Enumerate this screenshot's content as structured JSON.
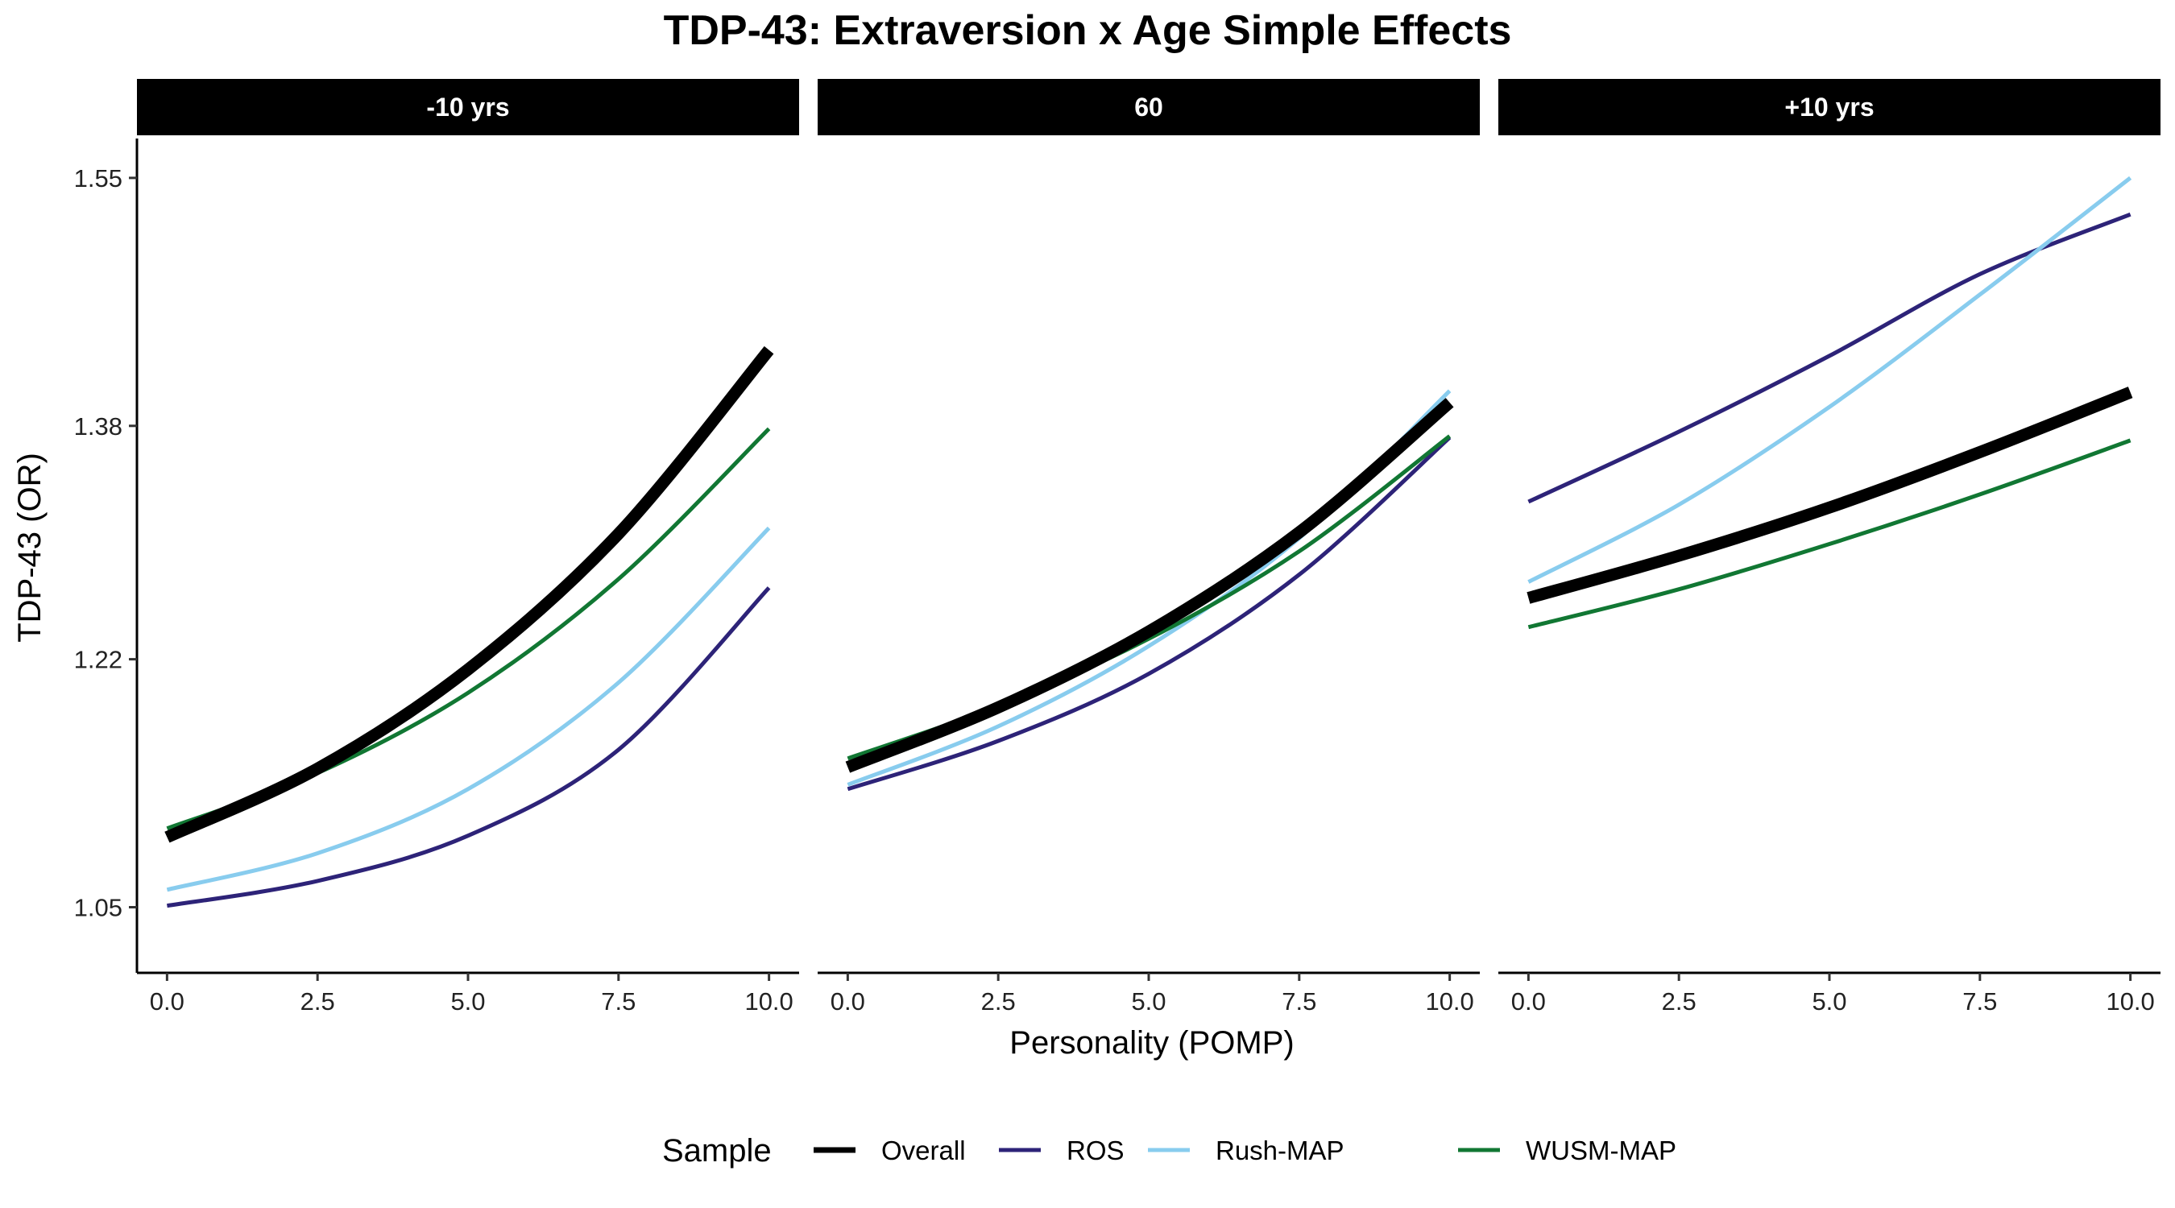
{
  "chart_data": {
    "type": "line",
    "title": "TDP-43: Extraversion x Age Simple Effects",
    "xlabel": "Personality (POMP)",
    "ylabel": "TDP-43 (OR)",
    "xlim": [
      -0.5,
      10.5
    ],
    "ylim": [
      1.005,
      1.577
    ],
    "x_ticks": [
      0,
      2.5,
      5,
      7.5,
      10
    ],
    "x_tick_labels": [
      "0.0",
      "2.5",
      "5.0",
      "7.5",
      "10.0"
    ],
    "y_ticks": [
      1.05,
      1.22,
      1.38,
      1.55
    ],
    "y_tick_labels": [
      "1.05",
      "1.22",
      "1.38",
      "1.55"
    ],
    "grid": false,
    "legend": {
      "title": "Sample",
      "position": "bottom",
      "entries": [
        "Overall",
        "ROS",
        "Rush-MAP",
        "WUSM-MAP"
      ]
    },
    "series_styles": {
      "Overall": {
        "color": "#000000",
        "width": "thick"
      },
      "ROS": {
        "color": "#2d2378",
        "width": "thin"
      },
      "Rush-MAP": {
        "color": "#88ccee",
        "width": "thin"
      },
      "WUSM-MAP": {
        "color": "#117733",
        "width": "thin"
      }
    },
    "x": [
      0,
      2.5,
      5,
      7.5,
      10
    ],
    "panels": [
      {
        "label": "-10 yrs",
        "series": [
          {
            "name": "Overall",
            "values": [
              1.098,
              1.145,
              1.213,
              1.306,
              1.432
            ]
          },
          {
            "name": "ROS",
            "values": [
              1.051,
              1.068,
              1.099,
              1.158,
              1.269
            ]
          },
          {
            "name": "Rush-MAP",
            "values": [
              1.062,
              1.087,
              1.131,
              1.204,
              1.31
            ]
          },
          {
            "name": "WUSM-MAP",
            "values": [
              1.104,
              1.142,
              1.197,
              1.275,
              1.378
            ]
          }
        ]
      },
      {
        "label": "60",
        "series": [
          {
            "name": "Overall",
            "values": [
              1.146,
              1.187,
              1.239,
              1.307,
              1.396
            ]
          },
          {
            "name": "ROS",
            "values": [
              1.131,
              1.164,
              1.21,
              1.278,
              1.372
            ]
          },
          {
            "name": "Rush-MAP",
            "values": [
              1.134,
              1.174,
              1.229,
              1.303,
              1.404
            ]
          },
          {
            "name": "WUSM-MAP",
            "values": [
              1.152,
              1.188,
              1.234,
              1.294,
              1.373
            ]
          }
        ]
      },
      {
        "label": "+10 yrs",
        "series": [
          {
            "name": "Overall",
            "values": [
              1.262,
              1.291,
              1.324,
              1.362,
              1.403
            ]
          },
          {
            "name": "ROS",
            "values": [
              1.328,
              1.376,
              1.428,
              1.484,
              1.525
            ]
          },
          {
            "name": "Rush-MAP",
            "values": [
              1.273,
              1.326,
              1.393,
              1.47,
              1.55
            ]
          },
          {
            "name": "WUSM-MAP",
            "values": [
              1.242,
              1.268,
              1.299,
              1.333,
              1.37
            ]
          }
        ]
      }
    ]
  }
}
